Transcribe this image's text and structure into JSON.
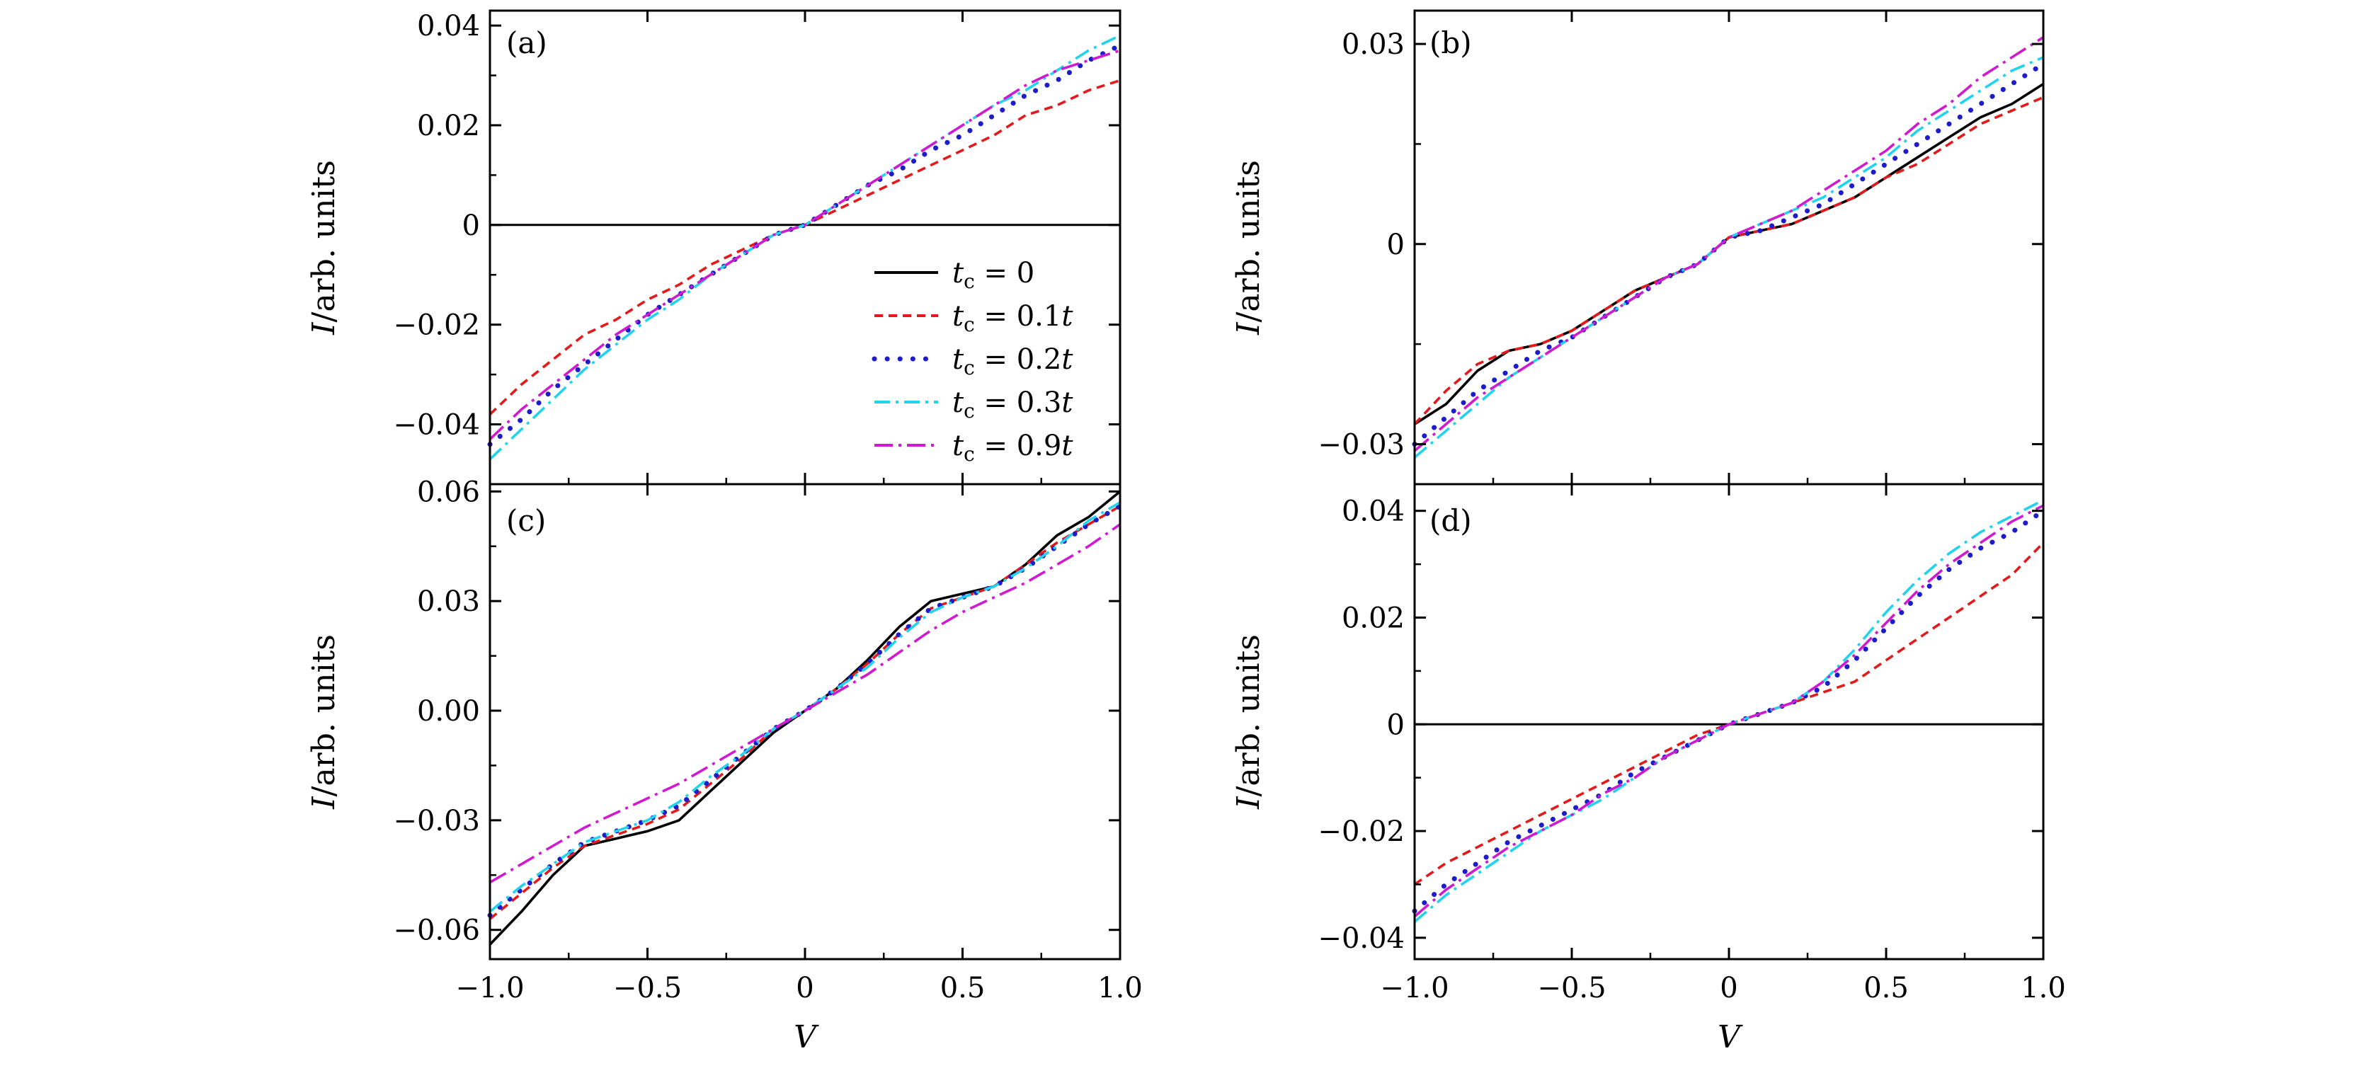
{
  "figure": {
    "ylabel": "I/arb. units",
    "xlabel": "V",
    "colors": {
      "tc0": "#000000",
      "tc01": "#e31a1c",
      "tc02": "#1c1cc8",
      "tc03": "#22d3ee",
      "tc09": "#d01ad0"
    }
  },
  "legend": {
    "entries": [
      "tc = 0",
      "tc = 0.1t",
      "tc = 0.2t",
      "tc = 0.3t",
      "tc = 0.9t"
    ]
  },
  "chart_data": [
    {
      "panel": "(a)",
      "type": "line",
      "xlim": [
        -1.0,
        1.0
      ],
      "ylim": [
        -0.052,
        0.043
      ],
      "yticks": [
        -0.04,
        -0.02,
        0,
        0.02,
        0.04
      ],
      "ytick_labels": [
        "−0.04",
        "−0.02",
        "0",
        "0.02",
        "0.04"
      ],
      "xticks": [
        -1.0,
        -0.5,
        0,
        0.5,
        1.0
      ],
      "xtick_labels": [
        "",
        "",
        "",
        "",
        ""
      ],
      "zero_line": true,
      "x": [
        -1.0,
        -0.9,
        -0.8,
        -0.7,
        -0.6,
        -0.5,
        -0.4,
        -0.3,
        -0.2,
        -0.1,
        0.0,
        0.1,
        0.2,
        0.3,
        0.4,
        0.5,
        0.6,
        0.7,
        0.8,
        0.9,
        1.0
      ],
      "series": [
        {
          "name": "tc = 0.1t",
          "key": "tc01",
          "values": [
            -0.038,
            -0.032,
            -0.027,
            -0.022,
            -0.019,
            -0.015,
            -0.012,
            -0.008,
            -0.005,
            -0.002,
            0.0,
            0.003,
            0.006,
            0.009,
            0.012,
            0.015,
            0.018,
            0.022,
            0.024,
            0.027,
            0.029
          ]
        },
        {
          "name": "tc = 0.2t",
          "key": "tc02",
          "values": [
            -0.044,
            -0.039,
            -0.033,
            -0.028,
            -0.023,
            -0.018,
            -0.014,
            -0.01,
            -0.006,
            -0.002,
            0.0,
            0.004,
            0.008,
            0.011,
            0.015,
            0.018,
            0.022,
            0.026,
            0.029,
            0.033,
            0.036
          ]
        },
        {
          "name": "tc = 0.3t",
          "key": "tc03",
          "values": [
            -0.047,
            -0.041,
            -0.035,
            -0.029,
            -0.024,
            -0.019,
            -0.015,
            -0.01,
            -0.006,
            -0.002,
            0.0,
            0.004,
            0.008,
            0.012,
            0.016,
            0.02,
            0.024,
            0.027,
            0.031,
            0.035,
            0.038
          ]
        },
        {
          "name": "tc = 0.9t",
          "key": "tc09",
          "values": [
            -0.043,
            -0.037,
            -0.032,
            -0.027,
            -0.022,
            -0.018,
            -0.014,
            -0.01,
            -0.006,
            -0.002,
            0.0,
            0.004,
            0.008,
            0.012,
            0.016,
            0.02,
            0.024,
            0.028,
            0.031,
            0.033,
            0.035
          ]
        }
      ]
    },
    {
      "panel": "(b)",
      "type": "line",
      "xlim": [
        -1.0,
        1.0
      ],
      "ylim": [
        -0.036,
        0.035
      ],
      "yticks": [
        -0.03,
        0,
        0.03
      ],
      "ytick_labels": [
        "−0.03",
        "0",
        "0.03"
      ],
      "xticks": [
        -1.0,
        -0.5,
        0,
        0.5,
        1.0
      ],
      "xtick_labels": [
        "",
        "",
        "",
        "",
        ""
      ],
      "zero_line": false,
      "x": [
        -1.0,
        -0.9,
        -0.8,
        -0.7,
        -0.6,
        -0.5,
        -0.4,
        -0.3,
        -0.2,
        -0.1,
        0.0,
        0.1,
        0.2,
        0.3,
        0.4,
        0.5,
        0.6,
        0.7,
        0.8,
        0.9,
        1.0
      ],
      "series": [
        {
          "name": "tc = 0",
          "key": "tc0",
          "values": [
            -0.027,
            -0.024,
            -0.019,
            -0.016,
            -0.015,
            -0.013,
            -0.01,
            -0.007,
            -0.005,
            -0.003,
            0.001,
            0.002,
            0.003,
            0.005,
            0.007,
            0.01,
            0.013,
            0.016,
            0.019,
            0.021,
            0.024
          ]
        },
        {
          "name": "tc = 0.1t",
          "key": "tc01",
          "values": [
            -0.027,
            -0.022,
            -0.018,
            -0.016,
            -0.015,
            -0.013,
            -0.01,
            -0.007,
            -0.005,
            -0.003,
            0.001,
            0.002,
            0.003,
            0.005,
            0.007,
            0.01,
            0.012,
            0.015,
            0.018,
            0.02,
            0.022
          ]
        },
        {
          "name": "tc = 0.2t",
          "key": "tc02",
          "values": [
            -0.03,
            -0.026,
            -0.022,
            -0.019,
            -0.016,
            -0.014,
            -0.011,
            -0.008,
            -0.005,
            -0.003,
            0.001,
            0.002,
            0.004,
            0.006,
            0.009,
            0.012,
            0.015,
            0.018,
            0.021,
            0.024,
            0.027
          ]
        },
        {
          "name": "tc = 0.3t",
          "key": "tc03",
          "values": [
            -0.032,
            -0.028,
            -0.024,
            -0.02,
            -0.017,
            -0.014,
            -0.011,
            -0.008,
            -0.005,
            -0.003,
            0.001,
            0.003,
            0.005,
            0.007,
            0.01,
            0.013,
            0.017,
            0.02,
            0.023,
            0.026,
            0.028
          ]
        },
        {
          "name": "tc = 0.9t",
          "key": "tc09",
          "values": [
            -0.031,
            -0.027,
            -0.023,
            -0.02,
            -0.017,
            -0.014,
            -0.011,
            -0.008,
            -0.005,
            -0.003,
            0.001,
            0.003,
            0.005,
            0.008,
            0.011,
            0.014,
            0.018,
            0.021,
            0.025,
            0.028,
            0.031
          ]
        }
      ]
    },
    {
      "panel": "(c)",
      "type": "line",
      "xlim": [
        -1.0,
        1.0
      ],
      "ylim": [
        -0.068,
        0.062
      ],
      "yticks": [
        -0.06,
        -0.03,
        0.0,
        0.03,
        0.06
      ],
      "ytick_labels": [
        "−0.06",
        "−0.03",
        "0.00",
        "0.03",
        "0.06"
      ],
      "xticks": [
        -1.0,
        -0.5,
        0,
        0.5,
        1.0
      ],
      "xtick_labels": [
        "−1.0",
        "−0.5",
        "0",
        "0.5",
        "1.0"
      ],
      "zero_line": false,
      "x": [
        -1.0,
        -0.9,
        -0.8,
        -0.7,
        -0.6,
        -0.5,
        -0.4,
        -0.3,
        -0.2,
        -0.1,
        0.0,
        0.1,
        0.2,
        0.3,
        0.4,
        0.5,
        0.6,
        0.7,
        0.8,
        0.9,
        1.0
      ],
      "series": [
        {
          "name": "tc = 0",
          "key": "tc0",
          "values": [
            -0.064,
            -0.055,
            -0.045,
            -0.037,
            -0.035,
            -0.033,
            -0.03,
            -0.022,
            -0.014,
            -0.006,
            0.0,
            0.006,
            0.014,
            0.023,
            0.03,
            0.032,
            0.034,
            0.04,
            0.048,
            0.053,
            0.06
          ]
        },
        {
          "name": "tc = 0.1t",
          "key": "tc01",
          "values": [
            -0.057,
            -0.05,
            -0.043,
            -0.037,
            -0.034,
            -0.031,
            -0.027,
            -0.02,
            -0.013,
            -0.005,
            0.0,
            0.006,
            0.013,
            0.021,
            0.028,
            0.031,
            0.034,
            0.04,
            0.046,
            0.051,
            0.056
          ]
        },
        {
          "name": "tc = 0.2t",
          "key": "tc02",
          "values": [
            -0.056,
            -0.049,
            -0.042,
            -0.036,
            -0.033,
            -0.03,
            -0.026,
            -0.019,
            -0.012,
            -0.005,
            0.0,
            0.006,
            0.013,
            0.021,
            0.028,
            0.031,
            0.034,
            0.039,
            0.045,
            0.051,
            0.056
          ]
        },
        {
          "name": "tc = 0.3t",
          "key": "tc03",
          "values": [
            -0.055,
            -0.048,
            -0.042,
            -0.036,
            -0.033,
            -0.03,
            -0.025,
            -0.018,
            -0.012,
            -0.005,
            0.0,
            0.006,
            0.012,
            0.02,
            0.027,
            0.031,
            0.034,
            0.039,
            0.045,
            0.052,
            0.057
          ]
        },
        {
          "name": "tc = 0.9t",
          "key": "tc09",
          "values": [
            -0.047,
            -0.042,
            -0.037,
            -0.032,
            -0.028,
            -0.024,
            -0.02,
            -0.015,
            -0.01,
            -0.005,
            0.0,
            0.005,
            0.01,
            0.016,
            0.022,
            0.027,
            0.031,
            0.035,
            0.04,
            0.045,
            0.051
          ]
        }
      ]
    },
    {
      "panel": "(d)",
      "type": "line",
      "xlim": [
        -1.0,
        1.0
      ],
      "ylim": [
        -0.044,
        0.045
      ],
      "yticks": [
        -0.04,
        -0.02,
        0,
        0.02,
        0.04
      ],
      "ytick_labels": [
        "−0.04",
        "−0.02",
        "0",
        "0.02",
        "0.04"
      ],
      "xticks": [
        -1.0,
        -0.5,
        0,
        0.5,
        1.0
      ],
      "xtick_labels": [
        "−1.0",
        "−0.5",
        "0",
        "0.5",
        "1.0"
      ],
      "zero_line": true,
      "x": [
        -1.0,
        -0.9,
        -0.8,
        -0.7,
        -0.6,
        -0.5,
        -0.4,
        -0.3,
        -0.2,
        -0.1,
        0.0,
        0.1,
        0.2,
        0.3,
        0.4,
        0.5,
        0.6,
        0.7,
        0.8,
        0.9,
        1.0
      ],
      "series": [
        {
          "name": "tc = 0.1t",
          "key": "tc01",
          "values": [
            -0.03,
            -0.026,
            -0.023,
            -0.02,
            -0.017,
            -0.014,
            -0.011,
            -0.008,
            -0.005,
            -0.002,
            0.0,
            0.002,
            0.004,
            0.006,
            0.008,
            0.012,
            0.016,
            0.02,
            0.024,
            0.028,
            0.034
          ]
        },
        {
          "name": "tc = 0.2t",
          "key": "tc02",
          "values": [
            -0.035,
            -0.03,
            -0.026,
            -0.022,
            -0.019,
            -0.016,
            -0.013,
            -0.009,
            -0.006,
            -0.003,
            0.0,
            0.002,
            0.004,
            0.007,
            0.012,
            0.018,
            0.024,
            0.029,
            0.033,
            0.036,
            0.04
          ]
        },
        {
          "name": "tc = 0.3t",
          "key": "tc03",
          "values": [
            -0.037,
            -0.032,
            -0.028,
            -0.024,
            -0.02,
            -0.017,
            -0.014,
            -0.01,
            -0.006,
            -0.003,
            0.0,
            0.002,
            0.004,
            0.008,
            0.014,
            0.021,
            0.027,
            0.032,
            0.036,
            0.039,
            0.042
          ]
        },
        {
          "name": "tc = 0.9t",
          "key": "tc09",
          "values": [
            -0.036,
            -0.031,
            -0.027,
            -0.023,
            -0.02,
            -0.017,
            -0.013,
            -0.01,
            -0.006,
            -0.003,
            0.0,
            0.002,
            0.004,
            0.008,
            0.013,
            0.019,
            0.025,
            0.03,
            0.034,
            0.038,
            0.041
          ]
        }
      ]
    }
  ]
}
